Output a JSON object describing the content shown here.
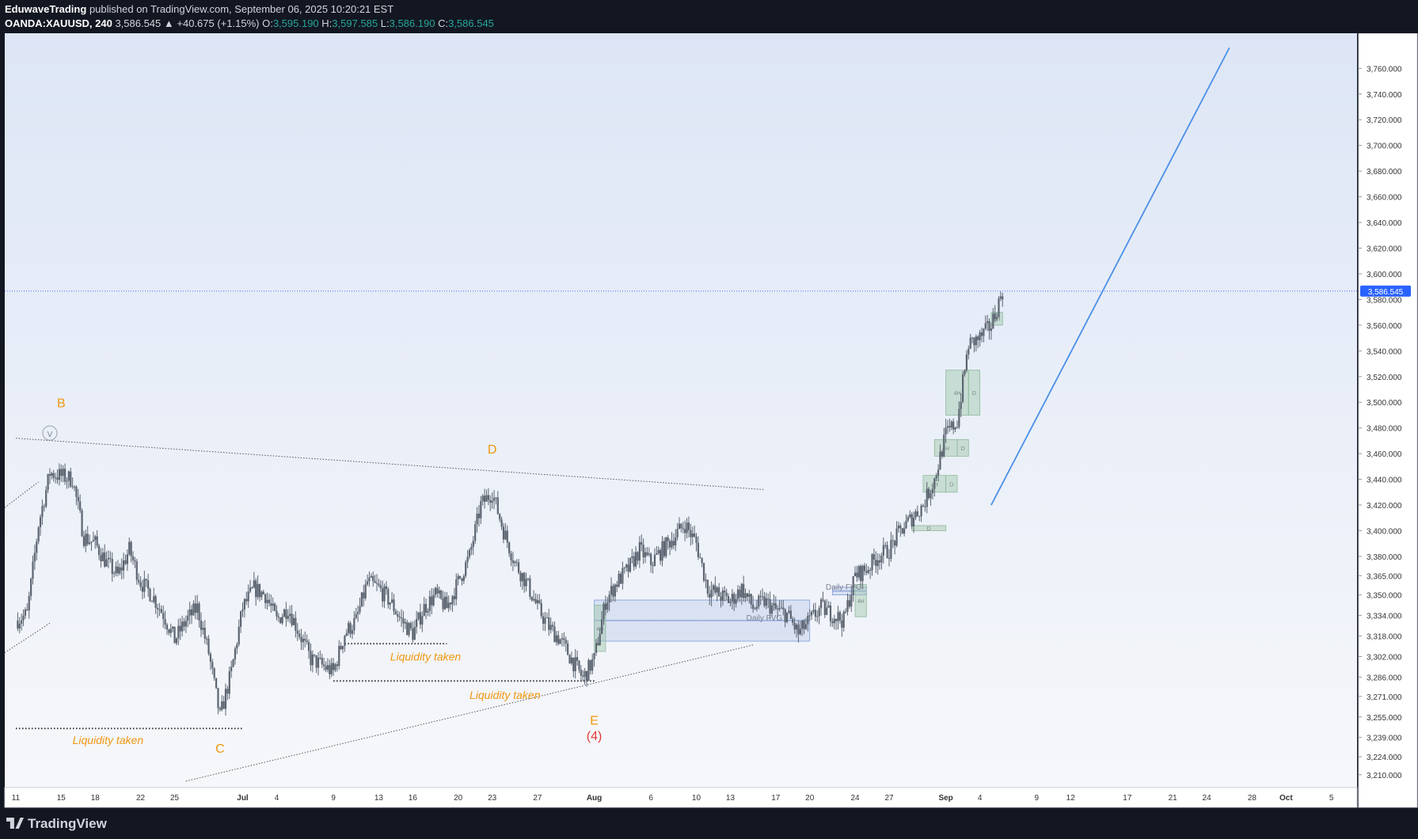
{
  "header": {
    "author": "EduwaveTrading",
    "published": "published on TradingView.com, September 06, 2025 10:20:21 EST",
    "symbol": "OANDA:XAUUSD, 240",
    "last": "3,586.545",
    "change": "▲ +40.675 (+1.15%)",
    "o_label": "O:",
    "o": "3,595.190",
    "h_label": "H:",
    "h": "3,597.585",
    "l_label": "L:",
    "l": "3,586.190",
    "c_label": "C:",
    "c": "3,586.545"
  },
  "footer": {
    "brand": "TradingView"
  },
  "colors": {
    "background_top": "#dde6f6",
    "background_bottom": "#f6f7fa",
    "candle": "#5b6470",
    "orange": "#f0960f",
    "red": "#e53935",
    "blue_line": "#4a8fe7",
    "fvg_fill": "#aebfe6",
    "ob_fill": "#9ec6a8",
    "price_label": "#2962ff"
  },
  "chart_data": {
    "type": "candlestick",
    "symbol": "XAUUSD",
    "interval": "240",
    "ylim": [
      3200,
      3775
    ],
    "yticks": [
      3210,
      3224,
      3239,
      3255,
      3271,
      3286,
      3302,
      3318,
      3334,
      3350,
      3365,
      3380,
      3400,
      3420,
      3440,
      3460,
      3480,
      3500,
      3520,
      3540,
      3560,
      3580,
      3600,
      3620,
      3640,
      3660,
      3680,
      3700,
      3720,
      3740,
      3760
    ],
    "ytick_labels": [
      "3,210.000",
      "3,224.000",
      "3,239.000",
      "3,255.000",
      "3,271.000",
      "3,286.000",
      "3,302.000",
      "3,318.000",
      "3,334.000",
      "3,350.000",
      "3,365.000",
      "3,380.000",
      "3,400.000",
      "3,420.000",
      "3,440.000",
      "3,460.000",
      "3,480.000",
      "3,500.000",
      "3,520.000",
      "3,540.000",
      "3,560.000",
      "3,580.000",
      "3,600.000",
      "3,620.000",
      "3,640.000",
      "3,660.000",
      "3,680.000",
      "3,700.000",
      "3,720.000",
      "3,740.000",
      "3,760.000"
    ],
    "xlim": [
      "2025-06-11",
      "2025-10-06"
    ],
    "xticks": [
      {
        "date": "2025-06-11",
        "label": "11"
      },
      {
        "date": "2025-06-15",
        "label": "15"
      },
      {
        "date": "2025-06-18",
        "label": "18"
      },
      {
        "date": "2025-06-22",
        "label": "22"
      },
      {
        "date": "2025-06-25",
        "label": "25"
      },
      {
        "date": "2025-07-01",
        "label": "Jul"
      },
      {
        "date": "2025-07-04",
        "label": "4"
      },
      {
        "date": "2025-07-09",
        "label": "9"
      },
      {
        "date": "2025-07-13",
        "label": "13"
      },
      {
        "date": "2025-07-16",
        "label": "16"
      },
      {
        "date": "2025-07-20",
        "label": "20"
      },
      {
        "date": "2025-07-23",
        "label": "23"
      },
      {
        "date": "2025-07-27",
        "label": "27"
      },
      {
        "date": "2025-08-01",
        "label": "Aug"
      },
      {
        "date": "2025-08-06",
        "label": "6"
      },
      {
        "date": "2025-08-10",
        "label": "10"
      },
      {
        "date": "2025-08-13",
        "label": "13"
      },
      {
        "date": "2025-08-17",
        "label": "17"
      },
      {
        "date": "2025-08-20",
        "label": "20"
      },
      {
        "date": "2025-08-24",
        "label": "24"
      },
      {
        "date": "2025-08-27",
        "label": "27"
      },
      {
        "date": "2025-09-01",
        "label": "Sep"
      },
      {
        "date": "2025-09-04",
        "label": "4"
      },
      {
        "date": "2025-09-09",
        "label": "9"
      },
      {
        "date": "2025-09-12",
        "label": "12"
      },
      {
        "date": "2025-09-17",
        "label": "17"
      },
      {
        "date": "2025-09-21",
        "label": "21"
      },
      {
        "date": "2025-09-24",
        "label": "24"
      },
      {
        "date": "2025-09-28",
        "label": "28"
      },
      {
        "date": "2025-10-01",
        "label": "Oct"
      },
      {
        "date": "2025-10-05",
        "label": "5"
      }
    ],
    "last_price": 3586.545,
    "last_price_label": "3,586.545",
    "price_path": [
      [
        "2025-06-11",
        3330
      ],
      [
        "2025-06-12",
        3335
      ],
      [
        "2025-06-13",
        3405
      ],
      [
        "2025-06-14",
        3445
      ],
      [
        "2025-06-16",
        3440
      ],
      [
        "2025-06-17",
        3395
      ],
      [
        "2025-06-18",
        3390
      ],
      [
        "2025-06-19",
        3375
      ],
      [
        "2025-06-20",
        3365
      ],
      [
        "2025-06-21",
        3385
      ],
      [
        "2025-06-22",
        3360
      ],
      [
        "2025-06-23",
        3350
      ],
      [
        "2025-06-24",
        3335
      ],
      [
        "2025-06-25",
        3315
      ],
      [
        "2025-06-26",
        3330
      ],
      [
        "2025-06-27",
        3340
      ],
      [
        "2025-06-28",
        3305
      ],
      [
        "2025-06-29",
        3255
      ],
      [
        "2025-06-30",
        3290
      ],
      [
        "2025-07-01",
        3340
      ],
      [
        "2025-07-02",
        3355
      ],
      [
        "2025-07-03",
        3350
      ],
      [
        "2025-07-04",
        3330
      ],
      [
        "2025-07-05",
        3340
      ],
      [
        "2025-07-06",
        3320
      ],
      [
        "2025-07-07",
        3300
      ],
      [
        "2025-07-08",
        3295
      ],
      [
        "2025-07-09",
        3290
      ],
      [
        "2025-07-10",
        3320
      ],
      [
        "2025-07-11",
        3330
      ],
      [
        "2025-07-12",
        3360
      ],
      [
        "2025-07-13",
        3355
      ],
      [
        "2025-07-14",
        3345
      ],
      [
        "2025-07-15",
        3330
      ],
      [
        "2025-07-16",
        3320
      ],
      [
        "2025-07-17",
        3340
      ],
      [
        "2025-07-18",
        3350
      ],
      [
        "2025-07-19",
        3340
      ],
      [
        "2025-07-20",
        3360
      ],
      [
        "2025-07-21",
        3380
      ],
      [
        "2025-07-22",
        3420
      ],
      [
        "2025-07-23",
        3430
      ],
      [
        "2025-07-24",
        3400
      ],
      [
        "2025-07-25",
        3375
      ],
      [
        "2025-07-26",
        3360
      ],
      [
        "2025-07-27",
        3340
      ],
      [
        "2025-07-28",
        3325
      ],
      [
        "2025-07-29",
        3315
      ],
      [
        "2025-07-30",
        3300
      ],
      [
        "2025-07-31",
        3285
      ],
      [
        "2025-08-01",
        3300
      ],
      [
        "2025-08-02",
        3345
      ],
      [
        "2025-08-03",
        3360
      ],
      [
        "2025-08-04",
        3370
      ],
      [
        "2025-08-05",
        3385
      ],
      [
        "2025-08-06",
        3375
      ],
      [
        "2025-08-07",
        3385
      ],
      [
        "2025-08-08",
        3395
      ],
      [
        "2025-08-09",
        3405
      ],
      [
        "2025-08-10",
        3390
      ],
      [
        "2025-08-11",
        3355
      ],
      [
        "2025-08-12",
        3350
      ],
      [
        "2025-08-13",
        3345
      ],
      [
        "2025-08-14",
        3355
      ],
      [
        "2025-08-15",
        3340
      ],
      [
        "2025-08-16",
        3345
      ],
      [
        "2025-08-17",
        3338
      ],
      [
        "2025-08-18",
        3335
      ],
      [
        "2025-08-19",
        3320
      ],
      [
        "2025-08-20",
        3330
      ],
      [
        "2025-08-21",
        3340
      ],
      [
        "2025-08-22",
        3335
      ],
      [
        "2025-08-23",
        3330
      ],
      [
        "2025-08-24",
        3365
      ],
      [
        "2025-08-25",
        3370
      ],
      [
        "2025-08-26",
        3380
      ],
      [
        "2025-08-27",
        3385
      ],
      [
        "2025-08-28",
        3400
      ],
      [
        "2025-08-29",
        3410
      ],
      [
        "2025-08-30",
        3420
      ],
      [
        "2025-08-31",
        3440
      ],
      [
        "2025-09-01",
        3475
      ],
      [
        "2025-09-02",
        3485
      ],
      [
        "2025-09-03",
        3545
      ],
      [
        "2025-09-04",
        3550
      ],
      [
        "2025-09-05",
        3560
      ],
      [
        "2025-09-06",
        3586.545
      ]
    ],
    "annotations": [
      {
        "type": "text",
        "text": "B",
        "date": "2025-06-15",
        "price": 3496,
        "color": "orange"
      },
      {
        "type": "text",
        "text": "D",
        "date": "2025-07-23",
        "price": 3460,
        "color": "orange"
      },
      {
        "type": "text",
        "text": "C",
        "date": "2025-06-29",
        "price": 3227,
        "color": "orange"
      },
      {
        "type": "text",
        "text": "E",
        "date": "2025-08-01",
        "price": 3249,
        "color": "orange"
      },
      {
        "type": "text",
        "text": "(4)",
        "date": "2025-08-01",
        "price": 3237,
        "color": "red"
      },
      {
        "type": "text",
        "text": "Liquidity taken",
        "date": "2025-06-16",
        "price": 3234,
        "color": "orange",
        "italic": true
      },
      {
        "type": "text",
        "text": "Liquidity taken",
        "date": "2025-07-14",
        "price": 3299,
        "color": "orange",
        "italic": true
      },
      {
        "type": "text",
        "text": "Liquidity taken",
        "date": "2025-07-21",
        "price": 3269,
        "color": "orange",
        "italic": true
      },
      {
        "type": "text",
        "text": "Daily FVG",
        "date": "2025-08-16",
        "price": 3330,
        "color": "gray"
      },
      {
        "type": "text",
        "text": "Daily FVG",
        "date": "2025-08-23",
        "price": 3354,
        "color": "gray"
      },
      {
        "type": "text",
        "text": "V",
        "date": "2025-06-14",
        "price": 3473,
        "color": "gray"
      }
    ],
    "levels": [
      {
        "label": "Liquidity taken",
        "price": 3246,
        "from": "2025-06-11",
        "to": "2025-07-01"
      },
      {
        "label": "Liquidity taken",
        "price": 3312,
        "from": "2025-07-10",
        "to": "2025-07-19"
      },
      {
        "label": "Liquidity taken",
        "price": 3283,
        "from": "2025-07-09",
        "to": "2025-08-01"
      }
    ],
    "trendlines": [
      {
        "style": "dotted",
        "from": [
          "2025-06-11",
          3472
        ],
        "to": [
          "2025-08-16",
          3432
        ]
      },
      {
        "style": "dotted",
        "from": [
          "2025-06-26",
          3205
        ],
        "to": [
          "2025-08-15",
          3311
        ]
      },
      {
        "style": "solid",
        "color": "blue",
        "from": [
          "2025-09-05",
          3420
        ],
        "to": [
          "2025-09-26",
          3776
        ]
      }
    ],
    "zones": [
      {
        "label": "Daily FVG",
        "from": "2025-08-01",
        "to": "2025-08-20",
        "low": 3314,
        "high": 3346,
        "kind": "fvg"
      },
      {
        "label": "Daily FVG",
        "from": "2025-08-22",
        "to": "2025-08-25",
        "low": 3350,
        "high": 3356,
        "kind": "fvg"
      },
      {
        "label": "4H",
        "from": "2025-08-01",
        "to": "2025-08-02",
        "low": 3306,
        "high": 3342,
        "kind": "ob"
      },
      {
        "label": "4H",
        "from": "2025-08-24",
        "to": "2025-08-25",
        "low": 3333,
        "high": 3358,
        "kind": "ob"
      },
      {
        "label": "D",
        "from": "2025-08-29",
        "to": "2025-09-01",
        "low": 3400,
        "high": 3404,
        "kind": "ob"
      },
      {
        "label": "4H",
        "from": "2025-08-30",
        "to": "2025-09-01",
        "low": 3430,
        "high": 3443,
        "kind": "ob"
      },
      {
        "label": "D",
        "from": "2025-09-01",
        "to": "2025-09-02",
        "low": 3430,
        "high": 3443,
        "kind": "ob"
      },
      {
        "label": "4H",
        "from": "2025-08-31",
        "to": "2025-09-02",
        "low": 3458,
        "high": 3471,
        "kind": "ob"
      },
      {
        "label": "D",
        "from": "2025-09-02",
        "to": "2025-09-03",
        "low": 3458,
        "high": 3471,
        "kind": "ob"
      },
      {
        "label": "4H",
        "from": "2025-09-01",
        "to": "2025-09-03",
        "low": 3490,
        "high": 3525,
        "kind": "ob"
      },
      {
        "label": "D",
        "from": "2025-09-03",
        "to": "2025-09-04",
        "low": 3490,
        "high": 3525,
        "kind": "ob"
      },
      {
        "label": "4H",
        "from": "2025-09-05",
        "to": "2025-09-06",
        "low": 3560,
        "high": 3570,
        "kind": "ob"
      }
    ]
  }
}
